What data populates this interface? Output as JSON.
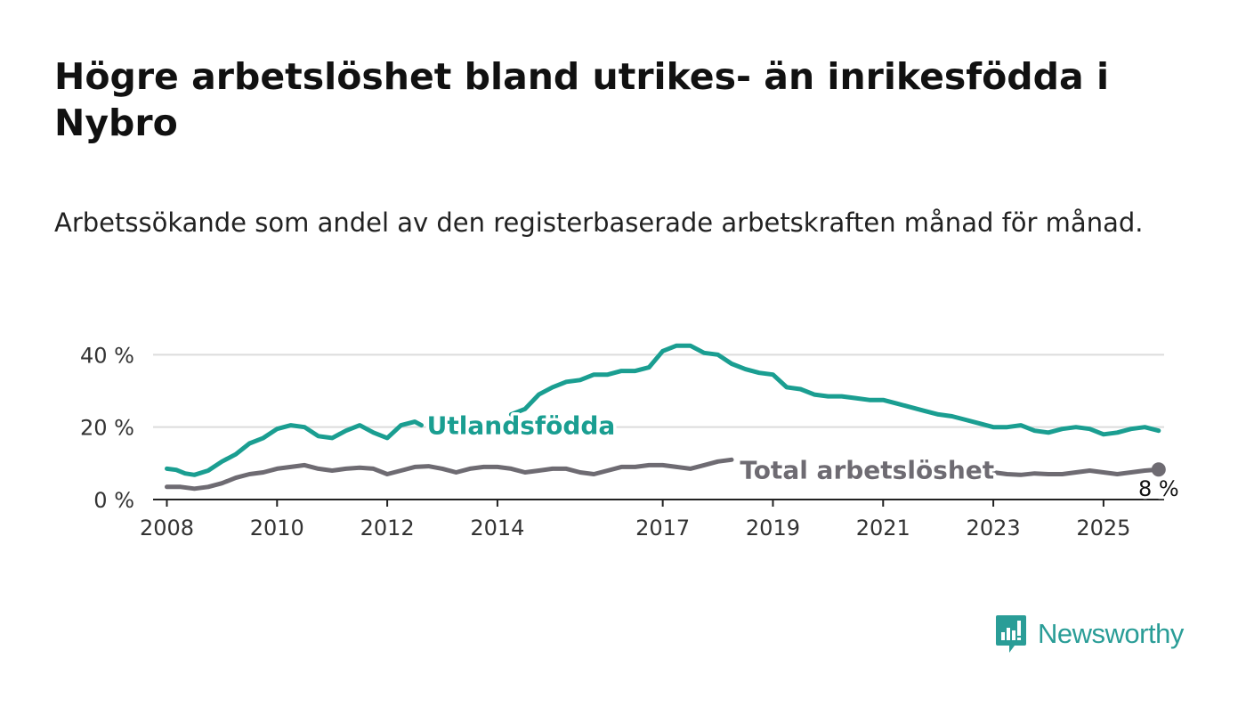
{
  "title": "Högre arbetslöshet bland utrikes- än inrikesfödda i Nybro",
  "subtitle": "Arbetssökande som andel av den registerbaserade arbetskraften månad för månad.",
  "brand": {
    "name": "Newsworthy",
    "icon": "newsworthy-logo-icon",
    "color": "#2a9d97"
  },
  "chart_data": {
    "type": "line",
    "ylim": [
      0,
      45
    ],
    "xlim": [
      2007.75,
      2026.1
    ],
    "y_ticks": [
      {
        "value": 0,
        "label": "0 %"
      },
      {
        "value": 20,
        "label": "20 %"
      },
      {
        "value": 40,
        "label": "40 %"
      }
    ],
    "x_ticks": [
      {
        "value": 2008,
        "label": "2008"
      },
      {
        "value": 2010,
        "label": "2010"
      },
      {
        "value": 2012,
        "label": "2012"
      },
      {
        "value": 2014,
        "label": "2014"
      },
      {
        "value": 2017,
        "label": "2017"
      },
      {
        "value": 2019,
        "label": "2019"
      },
      {
        "value": 2021,
        "label": "2021"
      },
      {
        "value": 2023,
        "label": "2023"
      },
      {
        "value": 2025,
        "label": "2025"
      }
    ],
    "grid": true,
    "series": [
      {
        "name": "Utlandsfödda",
        "color": "#1a9e91",
        "segments": [
          [
            [
              2008.0,
              8.5
            ],
            [
              2008.17,
              8.2
            ],
            [
              2008.33,
              7.2
            ],
            [
              2008.5,
              6.8
            ],
            [
              2008.75,
              8.0
            ],
            [
              2009.0,
              10.5
            ],
            [
              2009.25,
              12.5
            ],
            [
              2009.5,
              15.5
            ],
            [
              2009.75,
              17.0
            ],
            [
              2010.0,
              19.5
            ],
            [
              2010.25,
              20.5
            ],
            [
              2010.5,
              20.0
            ],
            [
              2010.75,
              17.5
            ],
            [
              2011.0,
              17.0
            ],
            [
              2011.25,
              19.0
            ],
            [
              2011.5,
              20.5
            ],
            [
              2011.75,
              18.5
            ],
            [
              2012.0,
              17.0
            ],
            [
              2012.25,
              20.5
            ],
            [
              2012.5,
              21.5
            ],
            [
              2012.62,
              20.5
            ]
          ],
          [
            [
              2014.25,
              23.5
            ],
            [
              2014.5,
              25.0
            ],
            [
              2014.75,
              29.0
            ],
            [
              2015.0,
              31.0
            ],
            [
              2015.25,
              32.5
            ],
            [
              2015.5,
              33.0
            ],
            [
              2015.75,
              34.5
            ],
            [
              2016.0,
              34.5
            ],
            [
              2016.25,
              35.5
            ],
            [
              2016.5,
              35.5
            ],
            [
              2016.75,
              36.5
            ],
            [
              2017.0,
              41.0
            ],
            [
              2017.25,
              42.5
            ],
            [
              2017.5,
              42.5
            ],
            [
              2017.75,
              40.5
            ],
            [
              2018.0,
              40.0
            ],
            [
              2018.25,
              37.5
            ],
            [
              2018.5,
              36.0
            ],
            [
              2018.75,
              35.0
            ],
            [
              2019.0,
              34.5
            ],
            [
              2019.25,
              31.0
            ],
            [
              2019.5,
              30.5
            ],
            [
              2019.75,
              29.0
            ],
            [
              2020.0,
              28.5
            ],
            [
              2020.25,
              28.5
            ],
            [
              2020.5,
              28.0
            ],
            [
              2020.75,
              27.5
            ],
            [
              2021.0,
              27.5
            ],
            [
              2021.25,
              26.5
            ],
            [
              2021.5,
              25.5
            ],
            [
              2021.75,
              24.5
            ],
            [
              2022.0,
              23.5
            ],
            [
              2022.25,
              23.0
            ],
            [
              2022.5,
              22.0
            ],
            [
              2022.75,
              21.0
            ],
            [
              2023.0,
              20.0
            ],
            [
              2023.25,
              20.0
            ],
            [
              2023.5,
              20.5
            ],
            [
              2023.75,
              19.0
            ],
            [
              2024.0,
              18.5
            ],
            [
              2024.25,
              19.5
            ],
            [
              2024.5,
              20.0
            ],
            [
              2024.75,
              19.5
            ],
            [
              2025.0,
              18.0
            ],
            [
              2025.25,
              18.5
            ],
            [
              2025.5,
              19.5
            ],
            [
              2025.75,
              20.0
            ],
            [
              2026.0,
              19.0
            ]
          ]
        ],
        "label_at": [
          2012.72,
          20.5
        ]
      },
      {
        "name": "Total arbetslöshet",
        "color": "#6e6b72",
        "segments": [
          [
            [
              2008.0,
              3.5
            ],
            [
              2008.25,
              3.5
            ],
            [
              2008.5,
              3.0
            ],
            [
              2008.75,
              3.5
            ],
            [
              2009.0,
              4.5
            ],
            [
              2009.25,
              6.0
            ],
            [
              2009.5,
              7.0
            ],
            [
              2009.75,
              7.5
            ],
            [
              2010.0,
              8.5
            ],
            [
              2010.25,
              9.0
            ],
            [
              2010.5,
              9.5
            ],
            [
              2010.75,
              8.5
            ],
            [
              2011.0,
              8.0
            ],
            [
              2011.25,
              8.5
            ],
            [
              2011.5,
              8.8
            ],
            [
              2011.75,
              8.5
            ],
            [
              2012.0,
              7.0
            ],
            [
              2012.25,
              8.0
            ],
            [
              2012.5,
              9.0
            ],
            [
              2012.75,
              9.2
            ],
            [
              2013.0,
              8.5
            ],
            [
              2013.25,
              7.5
            ],
            [
              2013.5,
              8.5
            ],
            [
              2013.75,
              9.0
            ],
            [
              2014.0,
              9.0
            ],
            [
              2014.25,
              8.5
            ],
            [
              2014.5,
              7.5
            ],
            [
              2014.75,
              8.0
            ],
            [
              2015.0,
              8.5
            ],
            [
              2015.25,
              8.5
            ],
            [
              2015.5,
              7.5
            ],
            [
              2015.75,
              7.0
            ],
            [
              2016.0,
              8.0
            ],
            [
              2016.25,
              9.0
            ],
            [
              2016.5,
              9.0
            ],
            [
              2016.75,
              9.5
            ],
            [
              2017.0,
              9.5
            ],
            [
              2017.25,
              9.0
            ],
            [
              2017.5,
              8.5
            ],
            [
              2017.75,
              9.5
            ],
            [
              2018.0,
              10.5
            ],
            [
              2018.25,
              11.0
            ]
          ],
          [
            [
              2022.75,
              8.0
            ],
            [
              2023.0,
              7.5
            ],
            [
              2023.25,
              7.0
            ],
            [
              2023.5,
              6.8
            ],
            [
              2023.75,
              7.2
            ],
            [
              2024.0,
              7.0
            ],
            [
              2024.25,
              7.0
            ],
            [
              2024.5,
              7.5
            ],
            [
              2024.75,
              8.0
            ],
            [
              2025.0,
              7.5
            ],
            [
              2025.25,
              7.0
            ],
            [
              2025.5,
              7.5
            ],
            [
              2025.75,
              8.0
            ],
            [
              2026.0,
              8.3
            ]
          ]
        ],
        "label_at": [
          2018.4,
          8.2
        ],
        "end_marker": [
          2026.0,
          8.3
        ]
      }
    ],
    "annotations": [
      {
        "text": "8 %",
        "x": 2026.0,
        "y": 8.3
      }
    ]
  }
}
